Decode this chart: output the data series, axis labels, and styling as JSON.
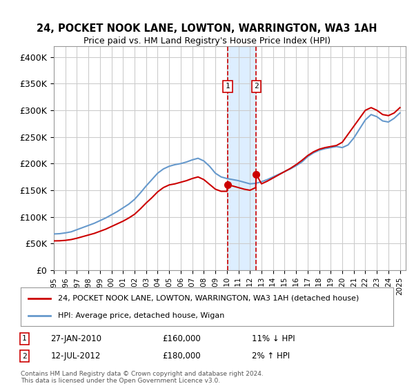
{
  "title": "24, POCKET NOOK LANE, LOWTON, WARRINGTON, WA3 1AH",
  "subtitle": "Price paid vs. HM Land Registry's House Price Index (HPI)",
  "ylabel_ticks": [
    "£0",
    "£50K",
    "£100K",
    "£150K",
    "£200K",
    "£250K",
    "£300K",
    "£350K",
    "£400K"
  ],
  "ytick_values": [
    0,
    50000,
    100000,
    150000,
    200000,
    250000,
    300000,
    350000,
    400000
  ],
  "ylim": [
    0,
    420000
  ],
  "xlim_start": 1995.0,
  "xlim_end": 2025.5,
  "transaction1": {
    "date_label": "27-JAN-2010",
    "x": 2010.07,
    "price": 160000,
    "note": "11% ↓ HPI"
  },
  "transaction2": {
    "date_label": "12-JUL-2012",
    "x": 2012.54,
    "price": 180000,
    "note": "2% ↑ HPI"
  },
  "legend_line1": "24, POCKET NOOK LANE, LOWTON, WARRINGTON, WA3 1AH (detached house)",
  "legend_line2": "HPI: Average price, detached house, Wigan",
  "footer": "Contains HM Land Registry data © Crown copyright and database right 2024.\nThis data is licensed under the Open Government Licence v3.0.",
  "line_color_red": "#cc0000",
  "line_color_blue": "#6699cc",
  "shade_color": "#ddeeff",
  "grid_color": "#cccccc",
  "bg_color": "#ffffff",
  "hpi_years": [
    1995,
    1995.5,
    1996,
    1996.5,
    1997,
    1997.5,
    1998,
    1998.5,
    1999,
    1999.5,
    2000,
    2000.5,
    2001,
    2001.5,
    2002,
    2002.5,
    2003,
    2003.5,
    2004,
    2004.5,
    2005,
    2005.5,
    2006,
    2006.5,
    2007,
    2007.5,
    2008,
    2008.5,
    2009,
    2009.5,
    2010,
    2010.5,
    2011,
    2011.5,
    2012,
    2012.5,
    2013,
    2013.5,
    2014,
    2014.5,
    2015,
    2015.5,
    2016,
    2016.5,
    2017,
    2017.5,
    2018,
    2018.5,
    2019,
    2019.5,
    2020,
    2020.5,
    2021,
    2021.5,
    2022,
    2022.5,
    2023,
    2023.5,
    2024,
    2024.5,
    2025
  ],
  "hpi_values": [
    68000,
    68500,
    70000,
    72000,
    76000,
    80000,
    84000,
    88000,
    93000,
    98000,
    104000,
    110000,
    117000,
    124000,
    133000,
    145000,
    158000,
    170000,
    182000,
    190000,
    195000,
    198000,
    200000,
    203000,
    207000,
    210000,
    205000,
    195000,
    182000,
    175000,
    172000,
    170000,
    168000,
    165000,
    162000,
    163000,
    166000,
    170000,
    175000,
    180000,
    185000,
    190000,
    196000,
    203000,
    213000,
    220000,
    225000,
    228000,
    230000,
    232000,
    230000,
    235000,
    248000,
    265000,
    282000,
    292000,
    288000,
    280000,
    278000,
    285000,
    295000
  ],
  "price_years": [
    1995,
    1995.5,
    1996,
    1996.5,
    1997,
    1997.5,
    1998,
    1998.5,
    1999,
    1999.5,
    2000,
    2000.5,
    2001,
    2001.5,
    2002,
    2002.5,
    2003,
    2003.5,
    2004,
    2004.5,
    2005,
    2005.5,
    2006,
    2006.5,
    2007,
    2007.5,
    2008,
    2008.5,
    2009,
    2009.5,
    2010,
    2010.07,
    2010.5,
    2011,
    2011.5,
    2012,
    2012.5,
    2012.54,
    2013,
    2013.5,
    2014,
    2014.5,
    2015,
    2015.5,
    2016,
    2016.5,
    2017,
    2017.5,
    2018,
    2018.5,
    2019,
    2019.5,
    2020,
    2020.5,
    2021,
    2021.5,
    2022,
    2022.5,
    2023,
    2023.5,
    2024,
    2024.5,
    2025
  ],
  "price_values": [
    55000,
    55200,
    56000,
    57500,
    60000,
    63000,
    66000,
    69000,
    73000,
    77000,
    82000,
    87000,
    92000,
    98000,
    105000,
    115000,
    126000,
    136000,
    147000,
    155000,
    160000,
    162000,
    165000,
    168000,
    172000,
    175000,
    170000,
    161000,
    152000,
    148000,
    148000,
    160000,
    158000,
    155000,
    152000,
    150000,
    155000,
    180000,
    162000,
    167000,
    173000,
    179000,
    185000,
    191000,
    198000,
    206000,
    215000,
    222000,
    227000,
    230000,
    232000,
    234000,
    240000,
    255000,
    270000,
    285000,
    300000,
    305000,
    300000,
    292000,
    290000,
    295000,
    305000
  ]
}
